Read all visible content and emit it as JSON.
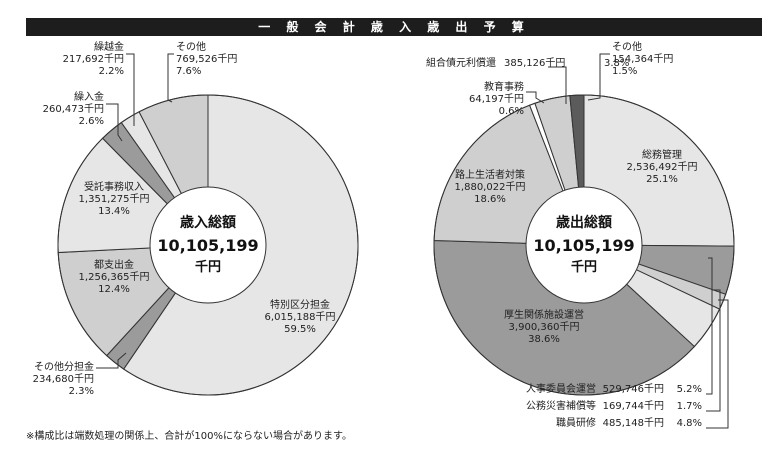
{
  "title": "一 般 会 計 歳 入 歳 出 予 算",
  "footnote": "※構成比は端数処理の関係上、合計が100%にならない場合があります。",
  "colors": {
    "dark": "#5b5b5b",
    "mid": "#9b9b9b",
    "light": "#cfcfcf",
    "pale": "#e6e6e6",
    "white": "#ffffff",
    "banner": "#1d1d1d"
  },
  "chart_data": [
    {
      "type": "pie",
      "title": "",
      "unit": "千円",
      "center_label": [
        "歳入総額",
        "10,105,199",
        "千円"
      ],
      "slices": [
        {
          "name": "特別区分担金",
          "amount": "6,015,188千円",
          "share": "59.5%",
          "value": 59.5,
          "color": "pale"
        },
        {
          "name": "その他分担金",
          "amount": "234,680千円",
          "share": "2.3%",
          "value": 2.3,
          "color": "mid"
        },
        {
          "name": "都支出金",
          "amount": "1,256,365千円",
          "share": "12.4%",
          "value": 12.4,
          "color": "light"
        },
        {
          "name": "受託事務収入",
          "amount": "1,351,275千円",
          "share": "13.4%",
          "value": 13.4,
          "color": "pale"
        },
        {
          "name": "繰入金",
          "amount": "260,473千円",
          "share": "2.6%",
          "value": 2.6,
          "color": "mid"
        },
        {
          "name": "繰越金",
          "amount": "217,692千円",
          "share": "2.2%",
          "value": 2.2,
          "color": "pale"
        },
        {
          "name": "その他",
          "amount": "769,526千円",
          "share": "7.6%",
          "value": 7.6,
          "color": "light"
        }
      ]
    },
    {
      "type": "pie",
      "title": "",
      "unit": "千円",
      "center_label": [
        "歳出総額",
        "10,105,199",
        "千円"
      ],
      "slices": [
        {
          "name": "総務管理",
          "amount": "2,536,492千円",
          "share": "25.1%",
          "value": 25.1,
          "color": "pale"
        },
        {
          "name": "人事委員会運営",
          "amount": "529,746千円",
          "share": "5.2%",
          "value": 5.2,
          "color": "mid"
        },
        {
          "name": "公務災害補償等",
          "amount": "169,744千円",
          "share": "1.7%",
          "value": 1.7,
          "color": "light"
        },
        {
          "name": "職員研修",
          "amount": "485,148千円",
          "share": "4.8%",
          "value": 4.8,
          "color": "pale"
        },
        {
          "name": "厚生関係施設運営",
          "amount": "3,900,360千円",
          "share": "38.6%",
          "value": 38.6,
          "color": "mid"
        },
        {
          "name": "路上生活者対策",
          "amount": "1,880,022千円",
          "share": "18.6%",
          "value": 18.6,
          "color": "light"
        },
        {
          "name": "教育事務",
          "amount": "64,197千円",
          "share": "0.6%",
          "value": 0.6,
          "color": "white"
        },
        {
          "name": "組合債元利償還",
          "amount": "385,126千円",
          "share": "3.8%",
          "value": 3.8,
          "color": "light"
        },
        {
          "name": "その他",
          "amount": "154,364千円",
          "share": "1.5%",
          "value": 1.5,
          "color": "dark"
        }
      ]
    }
  ]
}
